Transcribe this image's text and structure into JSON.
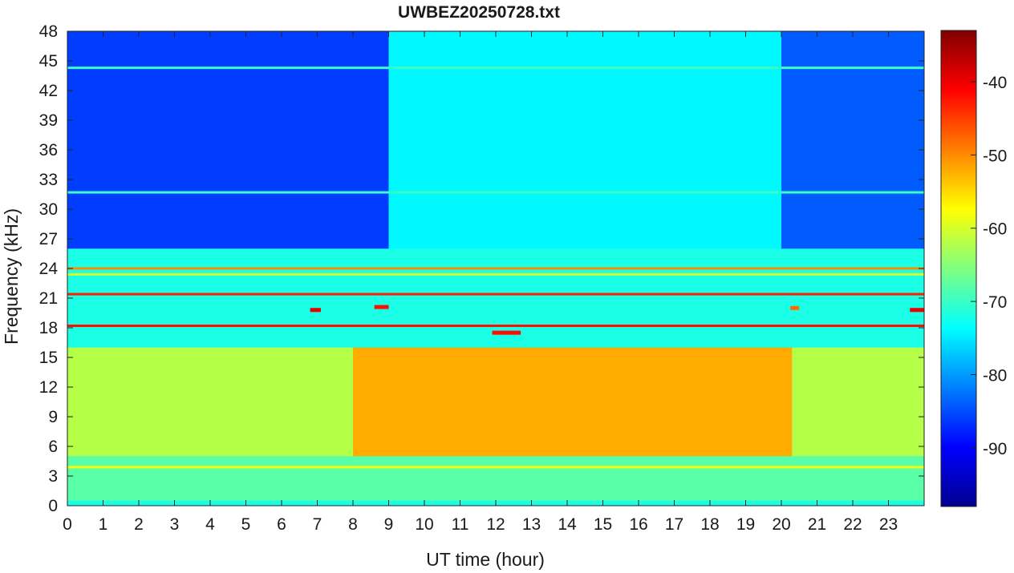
{
  "chart_data": {
    "type": "heatmap",
    "title": "UWBEZ20250728.txt",
    "xlabel": "UT time (hour)",
    "ylabel": "Frequency (kHz)",
    "xlim": [
      0,
      24
    ],
    "ylim": [
      0,
      48
    ],
    "x_ticks": [
      0,
      1,
      2,
      3,
      4,
      5,
      6,
      7,
      8,
      9,
      10,
      11,
      12,
      13,
      14,
      15,
      16,
      17,
      18,
      19,
      20,
      21,
      22,
      23
    ],
    "y_ticks": [
      0,
      3,
      6,
      9,
      12,
      15,
      18,
      21,
      24,
      27,
      30,
      33,
      36,
      39,
      42,
      45,
      48
    ],
    "colorbar": {
      "ticks": [
        -90,
        -80,
        -70,
        -60,
        -50,
        -40
      ],
      "range": [
        -98,
        -33
      ],
      "colormap": "jet",
      "colors": [
        "#00008f",
        "#0000ff",
        "#00ffff",
        "#ffff00",
        "#ff0000",
        "#800000"
      ]
    },
    "background_level_db": -72,
    "features": [
      {
        "kind": "band",
        "f_range": [
          5,
          16
        ],
        "t_range": [
          8,
          20.3
        ],
        "level_db": -52
      },
      {
        "kind": "band",
        "f_range": [
          5,
          16
        ],
        "t_range": [
          0,
          8
        ],
        "level_db": -62
      },
      {
        "kind": "band",
        "f_range": [
          5,
          16
        ],
        "t_range": [
          20.3,
          24
        ],
        "level_db": -62
      },
      {
        "kind": "band",
        "f_range": [
          0.5,
          5
        ],
        "t_range": [
          0,
          24
        ],
        "level_db": -68
      },
      {
        "kind": "band",
        "f_range": [
          26,
          48
        ],
        "t_range": [
          0,
          9
        ],
        "level_db": -86
      },
      {
        "kind": "band",
        "f_range": [
          26,
          48
        ],
        "t_range": [
          20,
          24
        ],
        "level_db": -84
      },
      {
        "kind": "band",
        "f_range": [
          26,
          48
        ],
        "t_range": [
          9,
          20
        ],
        "level_db": -74
      },
      {
        "kind": "line",
        "f_khz": 21.4,
        "t_range": [
          0,
          24
        ],
        "level_db": -43
      },
      {
        "kind": "line",
        "f_khz": 18.2,
        "t_range": [
          0,
          24
        ],
        "level_db": -42
      },
      {
        "kind": "line",
        "f_khz": 24.0,
        "t_range": [
          0,
          24
        ],
        "level_db": -50
      },
      {
        "kind": "line",
        "f_khz": 23.4,
        "t_range": [
          0,
          24
        ],
        "level_db": -60
      },
      {
        "kind": "line",
        "f_khz": 3.9,
        "t_range": [
          0,
          24
        ],
        "level_db": -58
      },
      {
        "kind": "line",
        "f_khz": 44.3,
        "t_range": [
          0,
          24
        ],
        "level_db": -70
      },
      {
        "kind": "line",
        "f_khz": 31.7,
        "t_range": [
          0,
          24
        ],
        "level_db": -70
      },
      {
        "kind": "segment",
        "f_khz": 19.8,
        "t_range": [
          6.8,
          7.1
        ],
        "level_db": -40
      },
      {
        "kind": "segment",
        "f_khz": 19.8,
        "t_range": [
          23.6,
          24
        ],
        "level_db": -40
      },
      {
        "kind": "segment",
        "f_khz": 20.1,
        "t_range": [
          8.6,
          9.0
        ],
        "level_db": -42
      },
      {
        "kind": "segment",
        "f_khz": 17.5,
        "t_range": [
          11.9,
          12.7
        ],
        "level_db": -42
      },
      {
        "kind": "segment",
        "f_khz": 20.0,
        "t_range": [
          20.25,
          20.5
        ],
        "level_db": -48
      }
    ]
  }
}
